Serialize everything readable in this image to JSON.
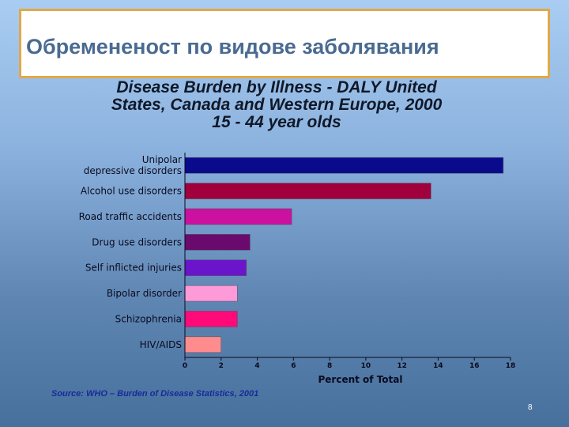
{
  "slide": {
    "title": "Обремененост по видове заболявания",
    "source": "Source: WHO – Burden of Disease Statistics, 2001",
    "page_number": "8"
  },
  "chart_data": {
    "type": "bar",
    "orientation": "horizontal",
    "title_lines": [
      "Disease Burden by Illness - DALY United",
      "States, Canada and Western Europe, 2000",
      "15 - 44 year olds"
    ],
    "categories": [
      [
        "Unipolar",
        "depressive disorders"
      ],
      [
        "Alcohol use disorders"
      ],
      [
        "Road traffic accidents"
      ],
      [
        "Drug use disorders"
      ],
      [
        "Self inflicted injuries"
      ],
      [
        "Bipolar disorder"
      ],
      [
        "Schizophrenia"
      ],
      [
        "HIV/AIDS"
      ]
    ],
    "values": [
      17.6,
      13.6,
      5.9,
      3.6,
      3.4,
      2.9,
      2.9,
      2.0
    ],
    "colors": [
      "#0a0a8c",
      "#a0003c",
      "#cc10a0",
      "#6a0a6e",
      "#6a14cc",
      "#ff9ad8",
      "#ff0a78",
      "#ff8c8c"
    ],
    "xlabel": "Percent of Total",
    "xlim": [
      0,
      18
    ],
    "xticks": [
      0,
      2,
      4,
      6,
      8,
      10,
      12,
      14,
      16,
      18
    ],
    "grid": false,
    "legend": "none"
  }
}
